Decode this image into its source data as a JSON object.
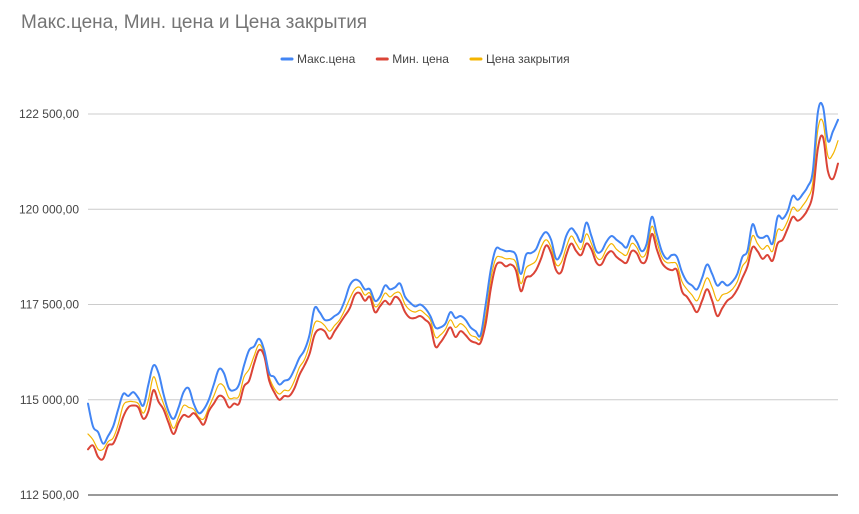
{
  "chart_data": {
    "type": "line",
    "title": "Макс.цена, Мин. цена и Цена закрытия",
    "xlabel": "",
    "ylabel": "",
    "ylim": [
      112500,
      123000
    ],
    "y_ticks": [
      {
        "value": 112500,
        "label": "112 500,00"
      },
      {
        "value": 115000,
        "label": "115 000,00"
      },
      {
        "value": 117500,
        "label": "117 500,00"
      },
      {
        "value": 120000,
        "label": "120 000,00"
      },
      {
        "value": 122500,
        "label": "122 500,00"
      }
    ],
    "grid": true,
    "legend_position": "top",
    "x": [
      0,
      1,
      2,
      3,
      4,
      5,
      6,
      7,
      8,
      9,
      10,
      11,
      12,
      13,
      14,
      15,
      16,
      17,
      18,
      19,
      20,
      21,
      22,
      23,
      24,
      25,
      26,
      27,
      28,
      29,
      30,
      31,
      32,
      33,
      34,
      35,
      36,
      37,
      38,
      39,
      40,
      41,
      42,
      43,
      44,
      45,
      46,
      47,
      48,
      49,
      50,
      51,
      52,
      53,
      54,
      55,
      56,
      57,
      58,
      59,
      60,
      61,
      62,
      63,
      64,
      65,
      66,
      67,
      68,
      69,
      70,
      71,
      72,
      73,
      74,
      75,
      76,
      77,
      78,
      79,
      80,
      81,
      82,
      83,
      84,
      85,
      86,
      87,
      88,
      89,
      90,
      91,
      92,
      93,
      94,
      95,
      96,
      97,
      98,
      99,
      100,
      101,
      102,
      103,
      104,
      105,
      106,
      107,
      108,
      109,
      110,
      111,
      112,
      113,
      114,
      115,
      116,
      117,
      118,
      119,
      120,
      121,
      122,
      123,
      124,
      125,
      126,
      127,
      128,
      129,
      130,
      131,
      132,
      133,
      134,
      135,
      136,
      137,
      138,
      139,
      140,
      141,
      142,
      143,
      144,
      145,
      146,
      147,
      148,
      149
    ],
    "series": [
      {
        "name": "Макс.цена",
        "color": "#4285f4",
        "values": [
          114900,
          114300,
          114150,
          113850,
          114050,
          114300,
          114750,
          115150,
          115100,
          115200,
          115050,
          114850,
          115400,
          115900,
          115700,
          115150,
          114700,
          114500,
          114800,
          115200,
          115300,
          114900,
          114650,
          114750,
          115000,
          115400,
          115800,
          115700,
          115300,
          115250,
          115400,
          115900,
          116300,
          116400,
          116600,
          116300,
          115700,
          115600,
          115400,
          115500,
          115550,
          115800,
          116100,
          116300,
          116700,
          117400,
          117300,
          117100,
          117100,
          117200,
          117300,
          117600,
          118000,
          118150,
          118100,
          117900,
          117900,
          117600,
          117700,
          118000,
          117900,
          117950,
          118050,
          117700,
          117550,
          117450,
          117500,
          117400,
          117200,
          116900,
          116900,
          117000,
          117300,
          117150,
          117200,
          117100,
          116900,
          116800,
          116700,
          117500,
          118400,
          118950,
          118950,
          118900,
          118900,
          118800,
          118300,
          118800,
          118850,
          118950,
          119250,
          119400,
          119200,
          118700,
          118850,
          119300,
          119500,
          119350,
          119150,
          119650,
          119300,
          118900,
          118900,
          119150,
          119300,
          119200,
          119100,
          119000,
          119300,
          119150,
          118900,
          119100,
          119800,
          119350,
          118900,
          118700,
          118800,
          118750,
          118350,
          118100,
          118000,
          117900,
          118200,
          118550,
          118300,
          118000,
          118100,
          118000,
          118100,
          118300,
          118750,
          118900,
          119600,
          119300,
          119250,
          119300,
          119100,
          119800,
          119750,
          119950,
          120350,
          120250,
          120400,
          120600,
          121000,
          122550,
          122700,
          121800,
          122050,
          122350
        ]
      },
      {
        "name": "Мин. цена",
        "color": "#db4437",
        "values": [
          113700,
          113800,
          113500,
          113450,
          113800,
          113850,
          114150,
          114550,
          114800,
          114850,
          114800,
          114500,
          114700,
          115250,
          114950,
          114750,
          114400,
          114100,
          114400,
          114600,
          114550,
          114650,
          114500,
          114350,
          114700,
          114900,
          115100,
          115050,
          114800,
          114900,
          114900,
          115350,
          115500,
          115950,
          116300,
          116150,
          115500,
          115200,
          115000,
          115100,
          115100,
          115300,
          115650,
          115900,
          116200,
          116700,
          116850,
          116800,
          116600,
          116800,
          117000,
          117200,
          117400,
          117750,
          117800,
          117600,
          117700,
          117300,
          117450,
          117600,
          117500,
          117700,
          117600,
          117300,
          117150,
          117150,
          117200,
          117100,
          116950,
          116400,
          116500,
          116700,
          116900,
          116650,
          116800,
          116700,
          116550,
          116500,
          116500,
          117000,
          117900,
          118500,
          118600,
          118500,
          118550,
          118400,
          117850,
          118200,
          118250,
          118400,
          118700,
          119050,
          118850,
          118400,
          118350,
          118800,
          119100,
          118900,
          118800,
          119100,
          118950,
          118600,
          118550,
          118800,
          118900,
          118750,
          118650,
          118600,
          118900,
          118850,
          118600,
          118700,
          119350,
          118950,
          118600,
          118450,
          118400,
          118400,
          117850,
          117700,
          117500,
          117300,
          117600,
          117900,
          117600,
          117200,
          117400,
          117600,
          117700,
          117900,
          118200,
          118500,
          119000,
          118900,
          118700,
          118800,
          118650,
          119100,
          119200,
          119500,
          119800,
          119700,
          119800,
          120000,
          120400,
          121600,
          121900,
          121000,
          120800,
          121200
        ]
      },
      {
        "name": "Цена закрытия",
        "color": "#f4b400",
        "values": [
          114100,
          113950,
          113700,
          113700,
          113900,
          114000,
          114350,
          114850,
          114950,
          114950,
          114900,
          114650,
          115000,
          115600,
          115250,
          114900,
          114550,
          114250,
          114550,
          114850,
          114800,
          114750,
          114550,
          114500,
          114800,
          115100,
          115400,
          115350,
          115050,
          115050,
          115100,
          115600,
          115800,
          116150,
          116450,
          116200,
          115600,
          115300,
          115150,
          115250,
          115250,
          115500,
          115850,
          116050,
          116450,
          117000,
          117050,
          116950,
          116800,
          116950,
          117100,
          117350,
          117650,
          117900,
          117950,
          117750,
          117800,
          117450,
          117550,
          117800,
          117700,
          117800,
          117800,
          117500,
          117350,
          117300,
          117350,
          117250,
          117100,
          116650,
          116700,
          116850,
          117100,
          116900,
          117000,
          116900,
          116700,
          116650,
          116600,
          117200,
          118150,
          118700,
          118750,
          118700,
          118700,
          118600,
          118050,
          118450,
          118550,
          118650,
          119000,
          119200,
          119000,
          118550,
          118600,
          119000,
          119300,
          119100,
          118950,
          119350,
          119100,
          118750,
          118700,
          118950,
          119100,
          118950,
          118850,
          118800,
          119100,
          119000,
          118750,
          118900,
          119550,
          119150,
          118750,
          118600,
          118600,
          118550,
          118100,
          117900,
          117750,
          117600,
          117900,
          118200,
          117950,
          117600,
          117750,
          117800,
          117900,
          118100,
          118500,
          118700,
          119300,
          119100,
          118950,
          119050,
          118900,
          119450,
          119450,
          119700,
          120050,
          119950,
          120100,
          120300,
          120700,
          122100,
          122300,
          121400,
          121450,
          121800
        ]
      }
    ]
  }
}
